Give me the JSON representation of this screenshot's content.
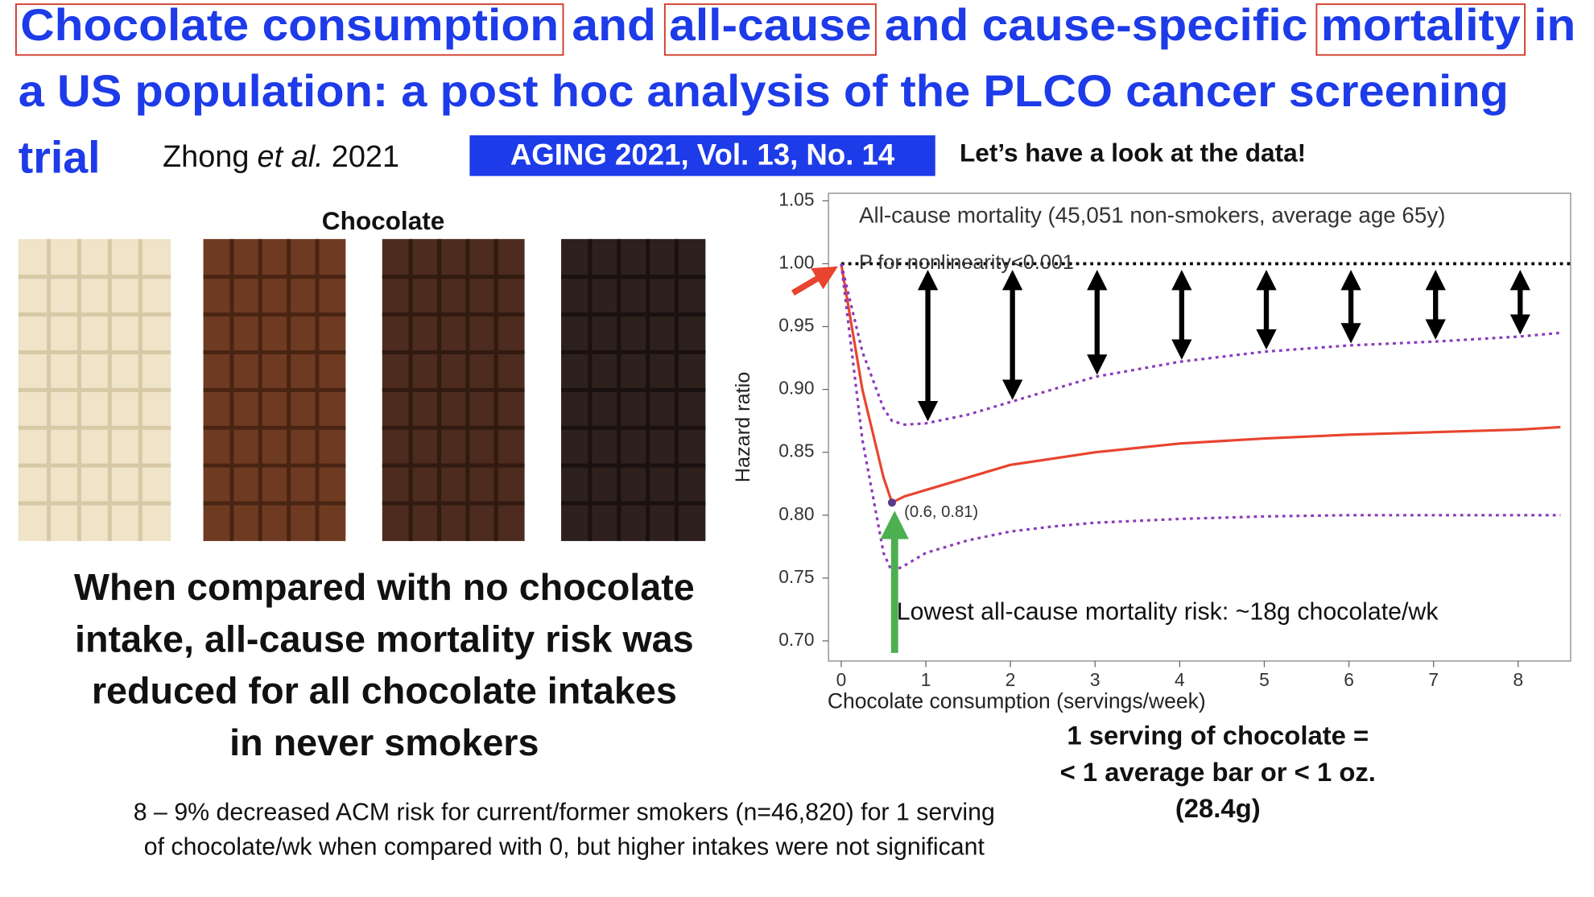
{
  "header": {
    "title_parts": [
      "Chocolate consumption",
      " and ",
      "all-cause",
      " and cause-specific ",
      "mortality",
      " in"
    ],
    "title_line2": "a US population: a post hoc analysis of the PLCO cancer screening",
    "title_line3": "trial",
    "author": "Zhong",
    "author_etal": "et al.",
    "year": "2021",
    "journal": "AGING 2021, Vol. 13, No. 14",
    "tagline": "Let’s have a look at the data!"
  },
  "image": {
    "label": "Chocolate"
  },
  "summary": {
    "lines": [
      "When compared with no chocolate",
      "intake, all-cause mortality risk was",
      "reduced for all chocolate intakes",
      "in never smokers"
    ]
  },
  "footnote": {
    "lines": [
      "8 – 9% decreased ACM risk for current/former smokers (n=46,820) for 1 serving",
      "of chocolate/wk when compared with 0, but higher intakes were not significant"
    ]
  },
  "serving_note": {
    "lines": [
      "1 serving of chocolate =",
      "< 1 average bar or < 1 oz.",
      "(28.4g)"
    ]
  },
  "chart_data": {
    "type": "line",
    "title": "All-cause mortality (45,051 non-smokers, average age 65y)",
    "subtitle": "P for nonlinearity<0.001",
    "x_label": "Chocolate consumption (servings/week)",
    "y_label": "Hazard ratio",
    "x": [
      0,
      0.25,
      0.5,
      0.6,
      0.75,
      1,
      1.5,
      2,
      2.5,
      3,
      4,
      5,
      6,
      7,
      8,
      8.5
    ],
    "series": [
      {
        "name": "Hazard ratio",
        "color": "#e8442f",
        "dash": false,
        "values": [
          1.0,
          0.9,
          0.83,
          0.81,
          0.815,
          0.82,
          0.83,
          0.84,
          0.845,
          0.85,
          0.857,
          0.861,
          0.864,
          0.866,
          0.868,
          0.87
        ]
      },
      {
        "name": "Upper 95% CI",
        "color": "#8a3ab9",
        "dash": true,
        "values": [
          1.0,
          0.93,
          0.885,
          0.875,
          0.872,
          0.873,
          0.88,
          0.89,
          0.9,
          0.91,
          0.922,
          0.93,
          0.935,
          0.938,
          0.942,
          0.945
        ]
      },
      {
        "name": "Lower 95% CI",
        "color": "#8a3ab9",
        "dash": true,
        "values": [
          1.0,
          0.86,
          0.77,
          0.755,
          0.76,
          0.77,
          0.78,
          0.787,
          0.791,
          0.794,
          0.797,
          0.799,
          0.8,
          0.8,
          0.8,
          0.8
        ]
      }
    ],
    "reference_line": 1,
    "min_point": {
      "x": 0.6,
      "y": 0.81,
      "label": "(0.6, 0.81)"
    },
    "annotation": "Lowest all-cause mortality risk: ~18g chocolate/wk",
    "xlim": [
      -0.15,
      8.62
    ],
    "ylim": [
      0.684,
      1.056
    ],
    "xticks": [
      0,
      1,
      2,
      3,
      4,
      5,
      6,
      7,
      8
    ],
    "yticks": [
      {
        "value": 0.7,
        "label": "0.70"
      },
      {
        "value": 0.75,
        "label": "0.75"
      },
      {
        "value": 0.8,
        "label": "0.80"
      },
      {
        "value": 0.85,
        "label": "0.85"
      },
      {
        "value": 0.9,
        "label": "0.90"
      },
      {
        "value": 0.95,
        "label": "0.95"
      },
      {
        "value": 1,
        "label": "1.00"
      },
      {
        "value": 1.05,
        "label": "1.05"
      }
    ],
    "grid": false
  }
}
